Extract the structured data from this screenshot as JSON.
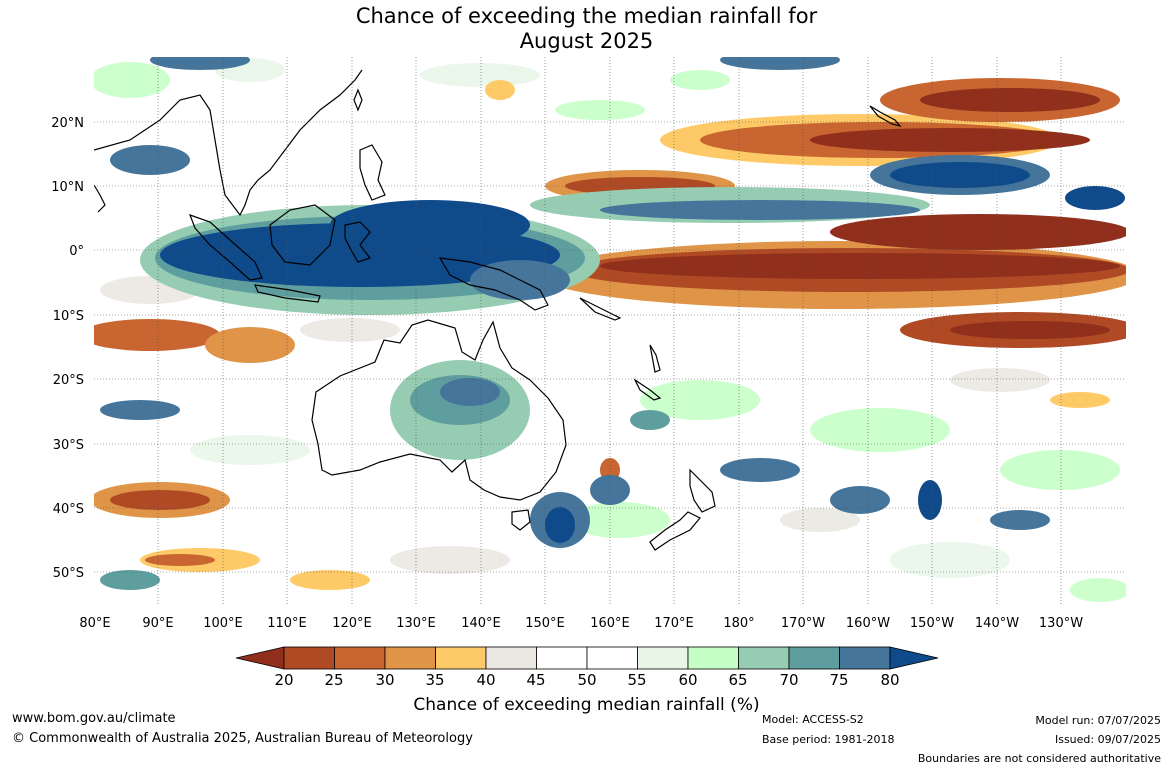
{
  "title": {
    "line1": "Chance of exceeding the median rainfall for",
    "line2": "August 2025"
  },
  "map": {
    "lat_labels": [
      "20°N",
      "10°N",
      "0°",
      "10°S",
      "20°S",
      "30°S",
      "40°S",
      "50°S"
    ],
    "lon_labels": [
      "80°E",
      "90°E",
      "100°E",
      "110°E",
      "120°E",
      "130°E",
      "140°E",
      "150°E",
      "160°E",
      "170°E",
      "180°",
      "170°W",
      "160°W",
      "150°W",
      "140°W",
      "130°W"
    ],
    "extent": {
      "lon_min": 80,
      "lon_max": 240,
      "lat_min": -55,
      "lat_max": 30
    }
  },
  "colorbar": {
    "title": "Chance of exceeding median rainfall (%)",
    "ticks": [
      "20",
      "25",
      "30",
      "35",
      "40",
      "45",
      "50",
      "55",
      "60",
      "65",
      "70",
      "75",
      "80"
    ],
    "colors": [
      "#8f2f1c",
      "#b04a25",
      "#c96530",
      "#df9447",
      "#fdca67",
      "#ebe8e3",
      "#ffffff",
      "#ffffff",
      "#e8f6e8",
      "#c6ffc6",
      "#96ccb2",
      "#5f9e9e",
      "#45759a",
      "#0f4a8b"
    ],
    "extend": "both"
  },
  "footer": {
    "website": "www.bom.gov.au/climate",
    "copyright": "© Commonwealth of Australia 2025, Australian Bureau of Meteorology",
    "model": "Model: ACCESS-S2",
    "base_period": "Base period: 1981-2018",
    "model_run": "Model run: 07/07/2025",
    "issued": "Issued: 09/07/2025",
    "disclaimer": "Boundaries are not considered authoritative"
  }
}
